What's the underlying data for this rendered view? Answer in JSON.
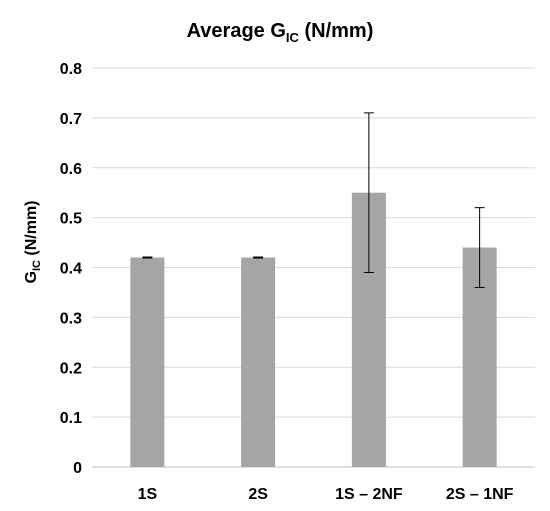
{
  "chart_data": {
    "type": "bar",
    "title": "Average G",
    "title_subscript": "IC",
    "title_suffix": " (N/mm)",
    "ylabel": "G",
    "ylabel_subscript": "IC",
    "ylabel_suffix": " (N/mm)",
    "xlabel": "",
    "categories": [
      "1S",
      "2S",
      "1S – 2NF",
      "2S – 1NF"
    ],
    "values": [
      0.42,
      0.42,
      0.55,
      0.44
    ],
    "error_low": [
      0.419,
      0.419,
      0.39,
      0.36
    ],
    "error_high": [
      0.421,
      0.421,
      0.71,
      0.52
    ],
    "ylim": [
      0,
      0.8
    ],
    "yticks": [
      "0",
      "0.1",
      "0.2",
      "0.3",
      "0.4",
      "0.5",
      "0.6",
      "0.7",
      "0.8"
    ],
    "grid": true,
    "legend": "none",
    "bar_color": "#a5a5a5"
  }
}
